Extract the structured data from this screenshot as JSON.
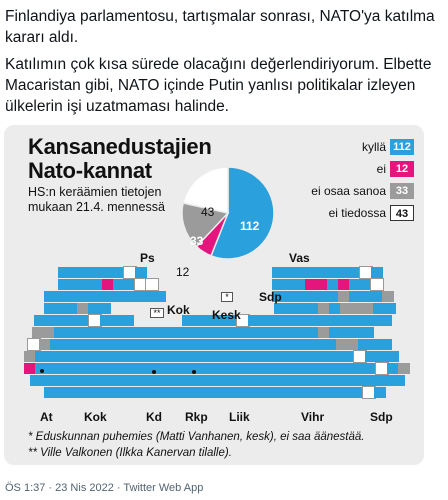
{
  "tweet": {
    "paragraphs": [
      "Finlandiya parlamentosu, tartışmalar sonrası, NATO'ya katılma kararı aldı.",
      "Katılımın çok kısa sürede olacağını değerlendiriyorum. Elbette Macaristan gibi, NATO içinde Putin yanlısı politikalar izleyen ülkelerin işi uzatmaması halinde."
    ]
  },
  "infographic": {
    "title_line1": "Kansanedustajien",
    "title_line2": "Nato-kannat",
    "subtitle_line1": "HS:n keräämien tietojen",
    "subtitle_line2": "mukaan 21.4. mennessä",
    "legend": [
      {
        "label": "kyllä",
        "value": "112"
      },
      {
        "label": "ei",
        "value": "12"
      },
      {
        "label": "ei osaa sanoa",
        "value": "33"
      },
      {
        "label": "ei tiedossa",
        "value": "43"
      }
    ],
    "pie": {
      "yes": 112,
      "no": 12,
      "dont_know": 33,
      "unknown": 43,
      "yes_label": "112",
      "no_label": "12",
      "dont_know_label": "33",
      "unknown_label": "43"
    },
    "parties_top": {
      "ps": "Ps",
      "kok": "Kok",
      "kesk": "Kesk",
      "vas": "Vas",
      "sdp": "Sdp"
    },
    "parties_bottom": {
      "at": "At",
      "kok": "Kok",
      "kd": "Kd",
      "rkp": "Rkp",
      "liik": "Liik",
      "vihr": "Vihr",
      "sdp": "Sdp"
    },
    "markers": {
      "speaker": "*",
      "valkonen": "**"
    },
    "notes": [
      "* Eduskunnan puhemies (Matti Vanhanen, kesk), ei saa äänestää.",
      "** Ville Valkonen (Ilkka Kanervan tilalle)."
    ],
    "colors": {
      "yes": "#2aa0dc",
      "no": "#e4157c",
      "dont_know": "#9b9b9b",
      "unknown": "#ffffff"
    }
  },
  "footer": {
    "text": "ÖS 1:37 · 23 Nis 2022 · Twitter Web App"
  }
}
